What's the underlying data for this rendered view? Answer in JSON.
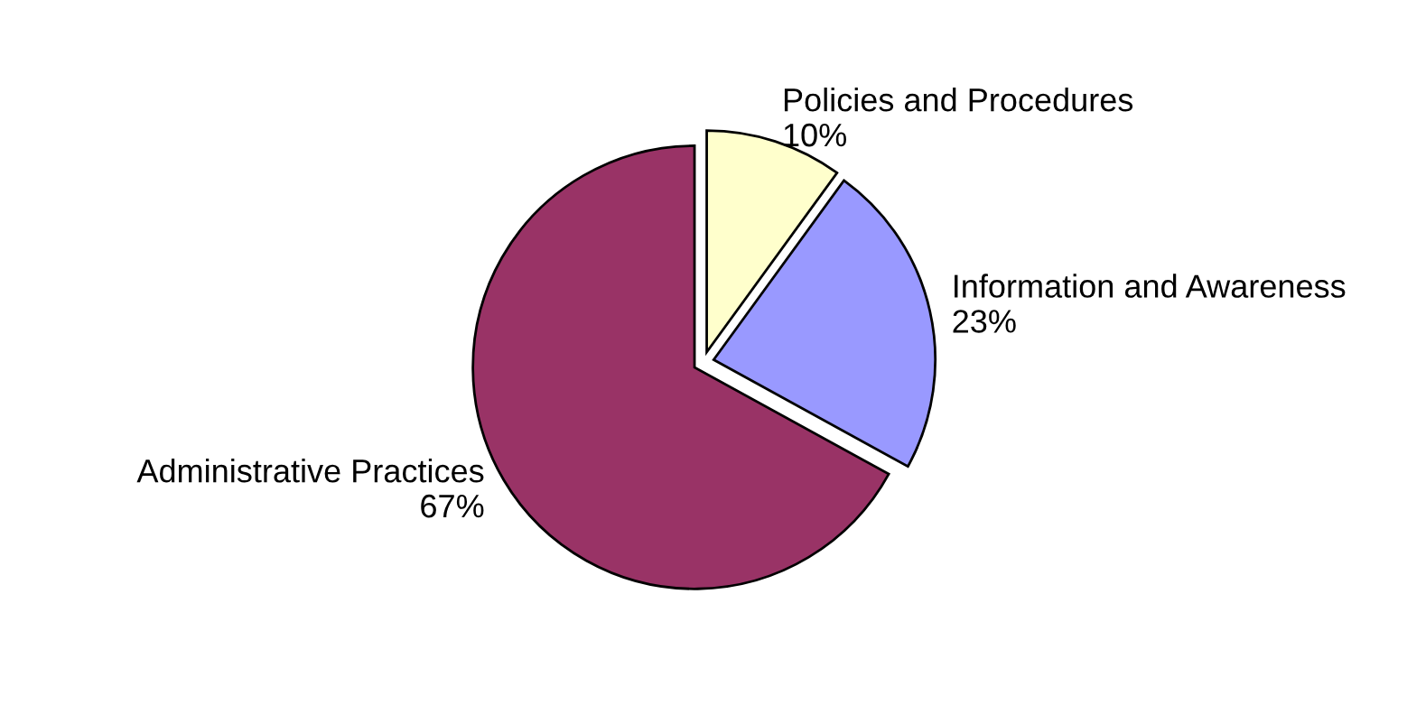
{
  "chart_data": {
    "type": "pie",
    "categories": [
      "Policies and Procedures",
      "Information and Awareness",
      "Administrative Practices"
    ],
    "values": [
      10,
      23,
      67
    ],
    "value_labels": [
      "10%",
      "23%",
      "67%"
    ],
    "colors": [
      "#ffffcc",
      "#9999ff",
      "#993366"
    ]
  }
}
